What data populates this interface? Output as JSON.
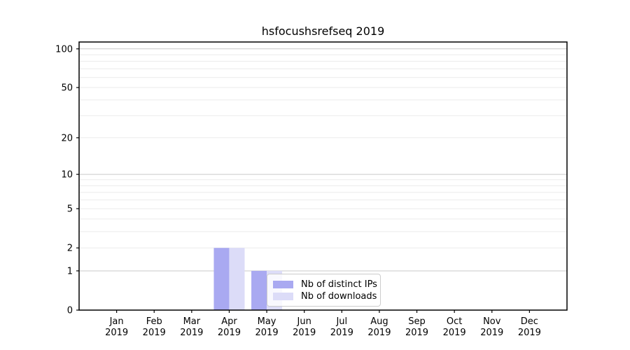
{
  "chart_data": {
    "type": "bar",
    "title": "hsfocushsrefseq 2019",
    "categories": [
      "Jan",
      "Feb",
      "Mar",
      "Apr",
      "May",
      "Jun",
      "Jul",
      "Aug",
      "Sep",
      "Oct",
      "Nov",
      "Dec"
    ],
    "year_label": "2019",
    "series": [
      {
        "name": "Nb of distinct IPs",
        "color": "#a9a9f1",
        "values": [
          0,
          0,
          0,
          2,
          1,
          0,
          0,
          0,
          0,
          0,
          0,
          0
        ]
      },
      {
        "name": "Nb of downloads",
        "color": "#dcdcf8",
        "values": [
          0,
          0,
          0,
          2,
          1,
          0,
          0,
          0,
          0,
          0,
          0,
          0
        ]
      }
    ],
    "yscale": "log1p",
    "ylim": [
      0,
      113
    ],
    "yticks": [
      0,
      1,
      2,
      5,
      10,
      20,
      50,
      100
    ],
    "major_gridlines": [
      1,
      10,
      100
    ],
    "minor_gridlines": [
      2,
      3,
      4,
      5,
      6,
      7,
      8,
      9,
      20,
      30,
      40,
      50,
      60,
      70,
      80,
      90
    ],
    "grid": "horizontal",
    "legend_position": "inside lower center",
    "colors": {
      "background": "#ffffff",
      "axis": "#000000",
      "text": "#000000",
      "major_grid": "#c9c9c9",
      "minor_grid": "#ebebeb",
      "legend_border": "#cccccc"
    }
  }
}
